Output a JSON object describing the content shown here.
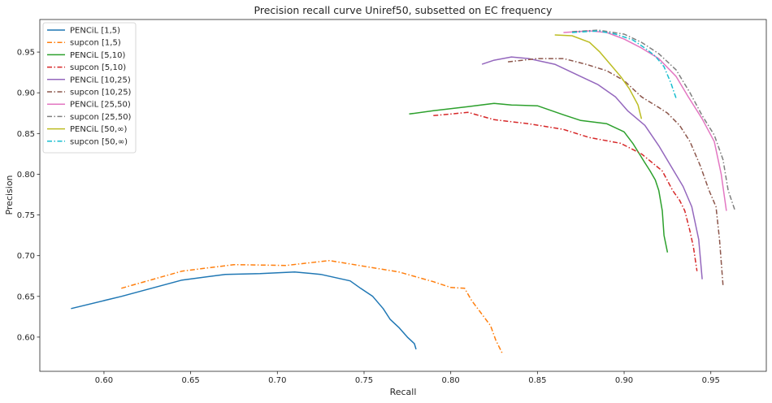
{
  "chart_data": {
    "type": "line",
    "title": "Precision recall curve Uniref50, subsetted on EC frequency",
    "xlabel": "Recall",
    "ylabel": "Precision",
    "xlim": [
      0.563,
      0.982
    ],
    "ylim": [
      0.558,
      0.99
    ],
    "xticks": [
      "0.60",
      "0.65",
      "0.70",
      "0.75",
      "0.80",
      "0.85",
      "0.90",
      "0.95"
    ],
    "yticks": [
      "0.60",
      "0.65",
      "0.70",
      "0.75",
      "0.80",
      "0.85",
      "0.90",
      "0.95"
    ],
    "grid": false,
    "legend_position": "top-left",
    "series": [
      {
        "name": "PENCiL [1,5)",
        "color": "#1f77b4",
        "dash": "solid",
        "x": [
          0.581,
          0.61,
          0.645,
          0.67,
          0.69,
          0.71,
          0.725,
          0.742,
          0.748,
          0.755,
          0.761,
          0.765,
          0.77,
          0.775,
          0.779,
          0.78
        ],
        "y": [
          0.635,
          0.65,
          0.67,
          0.677,
          0.678,
          0.68,
          0.677,
          0.669,
          0.66,
          0.65,
          0.635,
          0.622,
          0.612,
          0.6,
          0.592,
          0.585
        ]
      },
      {
        "name": "supcon [1,5)",
        "color": "#ff7f0e",
        "dash": "dashdot",
        "x": [
          0.61,
          0.645,
          0.675,
          0.705,
          0.73,
          0.77,
          0.79,
          0.8,
          0.808,
          0.812,
          0.818,
          0.823,
          0.826,
          0.83
        ],
        "y": [
          0.66,
          0.681,
          0.689,
          0.688,
          0.694,
          0.68,
          0.668,
          0.661,
          0.66,
          0.645,
          0.628,
          0.614,
          0.596,
          0.579
        ]
      },
      {
        "name": "PENCiL [5,10)",
        "color": "#2ca02c",
        "dash": "solid",
        "x": [
          0.776,
          0.79,
          0.81,
          0.825,
          0.835,
          0.85,
          0.865,
          0.875,
          0.89,
          0.9,
          0.905,
          0.912,
          0.915,
          0.918,
          0.92,
          0.922,
          0.923,
          0.925
        ],
        "y": [
          0.874,
          0.878,
          0.883,
          0.887,
          0.885,
          0.884,
          0.873,
          0.866,
          0.862,
          0.852,
          0.838,
          0.814,
          0.804,
          0.793,
          0.78,
          0.755,
          0.725,
          0.704
        ]
      },
      {
        "name": "supcon [5,10)",
        "color": "#d62728",
        "dash": "dashdot",
        "x": [
          0.79,
          0.81,
          0.825,
          0.845,
          0.865,
          0.88,
          0.898,
          0.91,
          0.922,
          0.928,
          0.932,
          0.935,
          0.938,
          0.94,
          0.942
        ],
        "y": [
          0.872,
          0.876,
          0.867,
          0.862,
          0.855,
          0.845,
          0.838,
          0.825,
          0.804,
          0.78,
          0.768,
          0.755,
          0.73,
          0.71,
          0.681
        ]
      },
      {
        "name": "PENCiL [10,25)",
        "color": "#9467bd",
        "dash": "solid",
        "x": [
          0.818,
          0.825,
          0.835,
          0.845,
          0.86,
          0.875,
          0.885,
          0.895,
          0.902,
          0.912,
          0.92,
          0.927,
          0.934,
          0.939,
          0.943,
          0.945
        ],
        "y": [
          0.935,
          0.94,
          0.944,
          0.942,
          0.935,
          0.92,
          0.91,
          0.895,
          0.878,
          0.86,
          0.835,
          0.81,
          0.785,
          0.76,
          0.72,
          0.671
        ]
      },
      {
        "name": "supcon [10,25)",
        "color": "#8c564b",
        "dash": "dashdot",
        "x": [
          0.833,
          0.85,
          0.865,
          0.878,
          0.89,
          0.9,
          0.91,
          0.92,
          0.925,
          0.932,
          0.938,
          0.944,
          0.949,
          0.953,
          0.955,
          0.957
        ],
        "y": [
          0.938,
          0.942,
          0.942,
          0.935,
          0.927,
          0.915,
          0.895,
          0.882,
          0.875,
          0.86,
          0.84,
          0.81,
          0.78,
          0.76,
          0.72,
          0.664
        ]
      },
      {
        "name": "PENCiL [25,50)",
        "color": "#e377c2",
        "dash": "solid",
        "x": [
          0.865,
          0.88,
          0.89,
          0.9,
          0.91,
          0.92,
          0.93,
          0.937,
          0.945,
          0.952,
          0.956,
          0.959
        ],
        "y": [
          0.974,
          0.976,
          0.974,
          0.966,
          0.955,
          0.942,
          0.92,
          0.895,
          0.868,
          0.84,
          0.8,
          0.755
        ]
      },
      {
        "name": "supcon [25,50)",
        "color": "#7f7f7f",
        "dash": "dashdot",
        "x": [
          0.87,
          0.885,
          0.9,
          0.91,
          0.92,
          0.93,
          0.938,
          0.945,
          0.952,
          0.957,
          0.96,
          0.964
        ],
        "y": [
          0.975,
          0.977,
          0.972,
          0.962,
          0.948,
          0.928,
          0.9,
          0.872,
          0.848,
          0.818,
          0.78,
          0.755
        ]
      },
      {
        "name": "PENCiL [50,∞)",
        "color": "#bcbd22",
        "dash": "solid",
        "x": [
          0.86,
          0.87,
          0.88,
          0.886,
          0.892,
          0.898,
          0.903,
          0.908,
          0.91
        ],
        "y": [
          0.971,
          0.97,
          0.962,
          0.95,
          0.935,
          0.92,
          0.905,
          0.885,
          0.868
        ]
      },
      {
        "name": "supcon [50,∞)",
        "color": "#17becf",
        "dash": "dashdot",
        "x": [
          0.87,
          0.885,
          0.895,
          0.905,
          0.912,
          0.918,
          0.923,
          0.927,
          0.93
        ],
        "y": [
          0.974,
          0.976,
          0.972,
          0.965,
          0.955,
          0.945,
          0.932,
          0.912,
          0.893
        ]
      }
    ]
  }
}
